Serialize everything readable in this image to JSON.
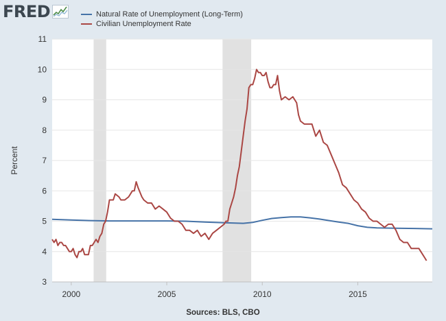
{
  "header": {
    "logo_text": "FRED",
    "logo_graph_icon": "fred-graph-icon"
  },
  "chart_data": {
    "type": "line",
    "ylabel": "Percent",
    "xlabel": "",
    "ylim": [
      3,
      11
    ],
    "xlim": [
      1999.0,
      2018.9
    ],
    "y_ticks": [
      3,
      4,
      5,
      6,
      7,
      8,
      9,
      10,
      11
    ],
    "x_ticks": [
      2000,
      2005,
      2010,
      2015
    ],
    "grid": true,
    "legend_position": "top-left",
    "recession_shading": [
      [
        2001.17,
        2001.83
      ],
      [
        2007.92,
        2009.42
      ]
    ],
    "recession_color": "#e1e1e1",
    "series": [
      {
        "name": "Natural Rate of Unemployment (Long-Term)",
        "color": "#4572a7",
        "x": [
          1999.0,
          2000.0,
          2001.0,
          2002.0,
          2003.0,
          2004.0,
          2005.0,
          2006.0,
          2007.0,
          2008.0,
          2009.0,
          2009.5,
          2010.0,
          2010.5,
          2011.0,
          2011.5,
          2012.0,
          2012.5,
          2013.0,
          2013.5,
          2014.0,
          2014.5,
          2015.0,
          2015.5,
          2016.0,
          2017.0,
          2018.0,
          2018.9
        ],
        "values": [
          5.06,
          5.04,
          5.02,
          5.01,
          5.01,
          5.01,
          5.01,
          5.0,
          4.97,
          4.95,
          4.93,
          4.96,
          5.03,
          5.09,
          5.12,
          5.14,
          5.14,
          5.11,
          5.07,
          5.02,
          4.97,
          4.93,
          4.85,
          4.8,
          4.78,
          4.77,
          4.76,
          4.75
        ]
      },
      {
        "name": "Civilian Unemployment Rate",
        "color": "#aa4643",
        "x": [
          1999.0,
          1999.1,
          1999.2,
          1999.3,
          1999.4,
          1999.5,
          1999.6,
          1999.7,
          1999.8,
          1999.9,
          2000.0,
          2000.1,
          2000.2,
          2000.3,
          2000.4,
          2000.5,
          2000.6,
          2000.7,
          2000.8,
          2000.9,
          2001.0,
          2001.1,
          2001.2,
          2001.3,
          2001.4,
          2001.5,
          2001.6,
          2001.7,
          2001.8,
          2001.9,
          2002.0,
          2002.2,
          2002.3,
          2002.5,
          2002.6,
          2002.8,
          2003.0,
          2003.2,
          2003.3,
          2003.4,
          2003.5,
          2003.7,
          2003.8,
          2004.0,
          2004.2,
          2004.4,
          2004.6,
          2004.8,
          2005.0,
          2005.2,
          2005.4,
          2005.6,
          2005.8,
          2006.0,
          2006.2,
          2006.4,
          2006.6,
          2006.8,
          2007.0,
          2007.2,
          2007.4,
          2007.6,
          2007.8,
          2008.0,
          2008.1,
          2008.2,
          2008.3,
          2008.4,
          2008.5,
          2008.6,
          2008.7,
          2008.8,
          2008.9,
          2009.0,
          2009.1,
          2009.2,
          2009.3,
          2009.4,
          2009.5,
          2009.6,
          2009.7,
          2009.8,
          2009.9,
          2010.0,
          2010.1,
          2010.2,
          2010.3,
          2010.4,
          2010.5,
          2010.6,
          2010.7,
          2010.8,
          2010.9,
          2011.0,
          2011.2,
          2011.4,
          2011.6,
          2011.8,
          2011.9,
          2012.0,
          2012.2,
          2012.4,
          2012.6,
          2012.8,
          2013.0,
          2013.2,
          2013.4,
          2013.6,
          2013.8,
          2014.0,
          2014.2,
          2014.4,
          2014.6,
          2014.8,
          2015.0,
          2015.2,
          2015.4,
          2015.6,
          2015.8,
          2016.0,
          2016.2,
          2016.4,
          2016.6,
          2016.8,
          2017.0,
          2017.2,
          2017.4,
          2017.6,
          2017.8,
          2018.0,
          2018.2,
          2018.4,
          2018.5,
          2018.6
        ],
        "values": [
          4.4,
          4.3,
          4.4,
          4.2,
          4.3,
          4.3,
          4.2,
          4.2,
          4.1,
          4.0,
          4.0,
          4.1,
          3.9,
          3.8,
          4.0,
          4.0,
          4.1,
          3.9,
          3.9,
          3.9,
          4.2,
          4.2,
          4.3,
          4.4,
          4.3,
          4.5,
          4.6,
          4.9,
          5.0,
          5.3,
          5.7,
          5.7,
          5.9,
          5.8,
          5.7,
          5.7,
          5.8,
          6.0,
          6.0,
          6.3,
          6.1,
          5.8,
          5.7,
          5.6,
          5.6,
          5.4,
          5.5,
          5.4,
          5.3,
          5.1,
          5.0,
          5.0,
          4.9,
          4.7,
          4.7,
          4.6,
          4.7,
          4.5,
          4.6,
          4.4,
          4.6,
          4.7,
          4.8,
          4.9,
          5.0,
          5.0,
          5.4,
          5.6,
          5.8,
          6.1,
          6.5,
          6.8,
          7.3,
          7.8,
          8.3,
          8.7,
          9.4,
          9.5,
          9.5,
          9.7,
          10.0,
          9.9,
          9.9,
          9.8,
          9.8,
          9.9,
          9.6,
          9.4,
          9.4,
          9.5,
          9.5,
          9.8,
          9.3,
          9.0,
          9.1,
          9.0,
          9.1,
          8.9,
          8.5,
          8.3,
          8.2,
          8.2,
          8.2,
          7.8,
          8.0,
          7.6,
          7.5,
          7.2,
          6.9,
          6.6,
          6.2,
          6.1,
          5.9,
          5.7,
          5.6,
          5.4,
          5.3,
          5.1,
          5.0,
          5.0,
          4.9,
          4.8,
          4.9,
          4.9,
          4.7,
          4.4,
          4.3,
          4.3,
          4.1,
          4.1,
          4.1,
          3.9,
          3.8,
          3.7
        ]
      }
    ]
  },
  "footer": {
    "source": "Sources: BLS, CBO"
  }
}
